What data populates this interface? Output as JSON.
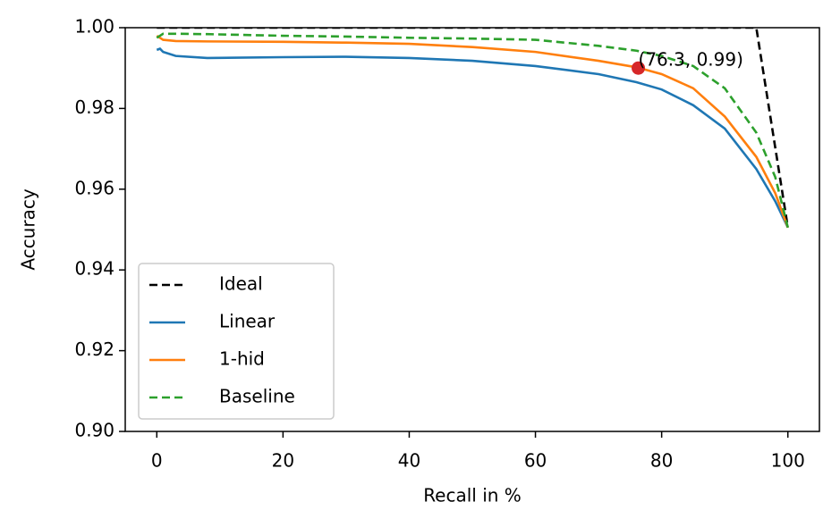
{
  "chart_data": {
    "type": "line",
    "xlabel": "Recall in %",
    "ylabel": "Accuracy",
    "xlim": [
      -5,
      105
    ],
    "ylim": [
      0.9,
      1.0
    ],
    "xticks": [
      0,
      20,
      40,
      60,
      80,
      100
    ],
    "yticks": [
      {
        "value": 0.9,
        "label": "0.90"
      },
      {
        "value": 0.92,
        "label": "0.92"
      },
      {
        "value": 0.94,
        "label": "0.94"
      },
      {
        "value": 0.96,
        "label": "0.96"
      },
      {
        "value": 0.98,
        "label": "0.98"
      },
      {
        "value": 1.0,
        "label": "1.00"
      }
    ],
    "legend": "lower left",
    "series": [
      {
        "name": "Ideal",
        "color": "#000000",
        "dash": true,
        "x": [
          0,
          95,
          100
        ],
        "values": [
          1.0,
          1.0,
          0.9505
        ]
      },
      {
        "name": "Linear",
        "color": "#1f77b4",
        "dash": false,
        "x": [
          0,
          0.5,
          1,
          3,
          8,
          20,
          30,
          40,
          50,
          60,
          70,
          76,
          80,
          85,
          90,
          95,
          98,
          100
        ],
        "values": [
          0.9945,
          0.9948,
          0.994,
          0.993,
          0.9925,
          0.9927,
          0.9928,
          0.9925,
          0.9918,
          0.9905,
          0.9885,
          0.9865,
          0.9847,
          0.9808,
          0.975,
          0.965,
          0.957,
          0.9505
        ]
      },
      {
        "name": "1-hid",
        "color": "#ff7f0e",
        "dash": false,
        "x": [
          0,
          0.5,
          1,
          3,
          8,
          20,
          30,
          40,
          50,
          60,
          70,
          76,
          80,
          85,
          90,
          95,
          98,
          100
        ],
        "values": [
          0.998,
          0.9975,
          0.997,
          0.9967,
          0.9966,
          0.9965,
          0.9963,
          0.996,
          0.9952,
          0.994,
          0.9918,
          0.9902,
          0.9885,
          0.985,
          0.978,
          0.968,
          0.959,
          0.9505
        ]
      },
      {
        "name": "Baseline",
        "color": "#2ca02c",
        "dash": true,
        "x": [
          0,
          0.5,
          1,
          3,
          8,
          20,
          30,
          40,
          50,
          60,
          70,
          76,
          80,
          85,
          90,
          95,
          98,
          100
        ],
        "values": [
          0.9975,
          0.998,
          0.9985,
          0.9985,
          0.9984,
          0.998,
          0.9978,
          0.9975,
          0.9973,
          0.997,
          0.9955,
          0.9943,
          0.993,
          0.9905,
          0.985,
          0.974,
          0.963,
          0.9505
        ]
      }
    ],
    "annotation": {
      "x": 76.3,
      "y": 0.99,
      "text": "(76.3, 0.99)",
      "color": "#d62728"
    }
  }
}
